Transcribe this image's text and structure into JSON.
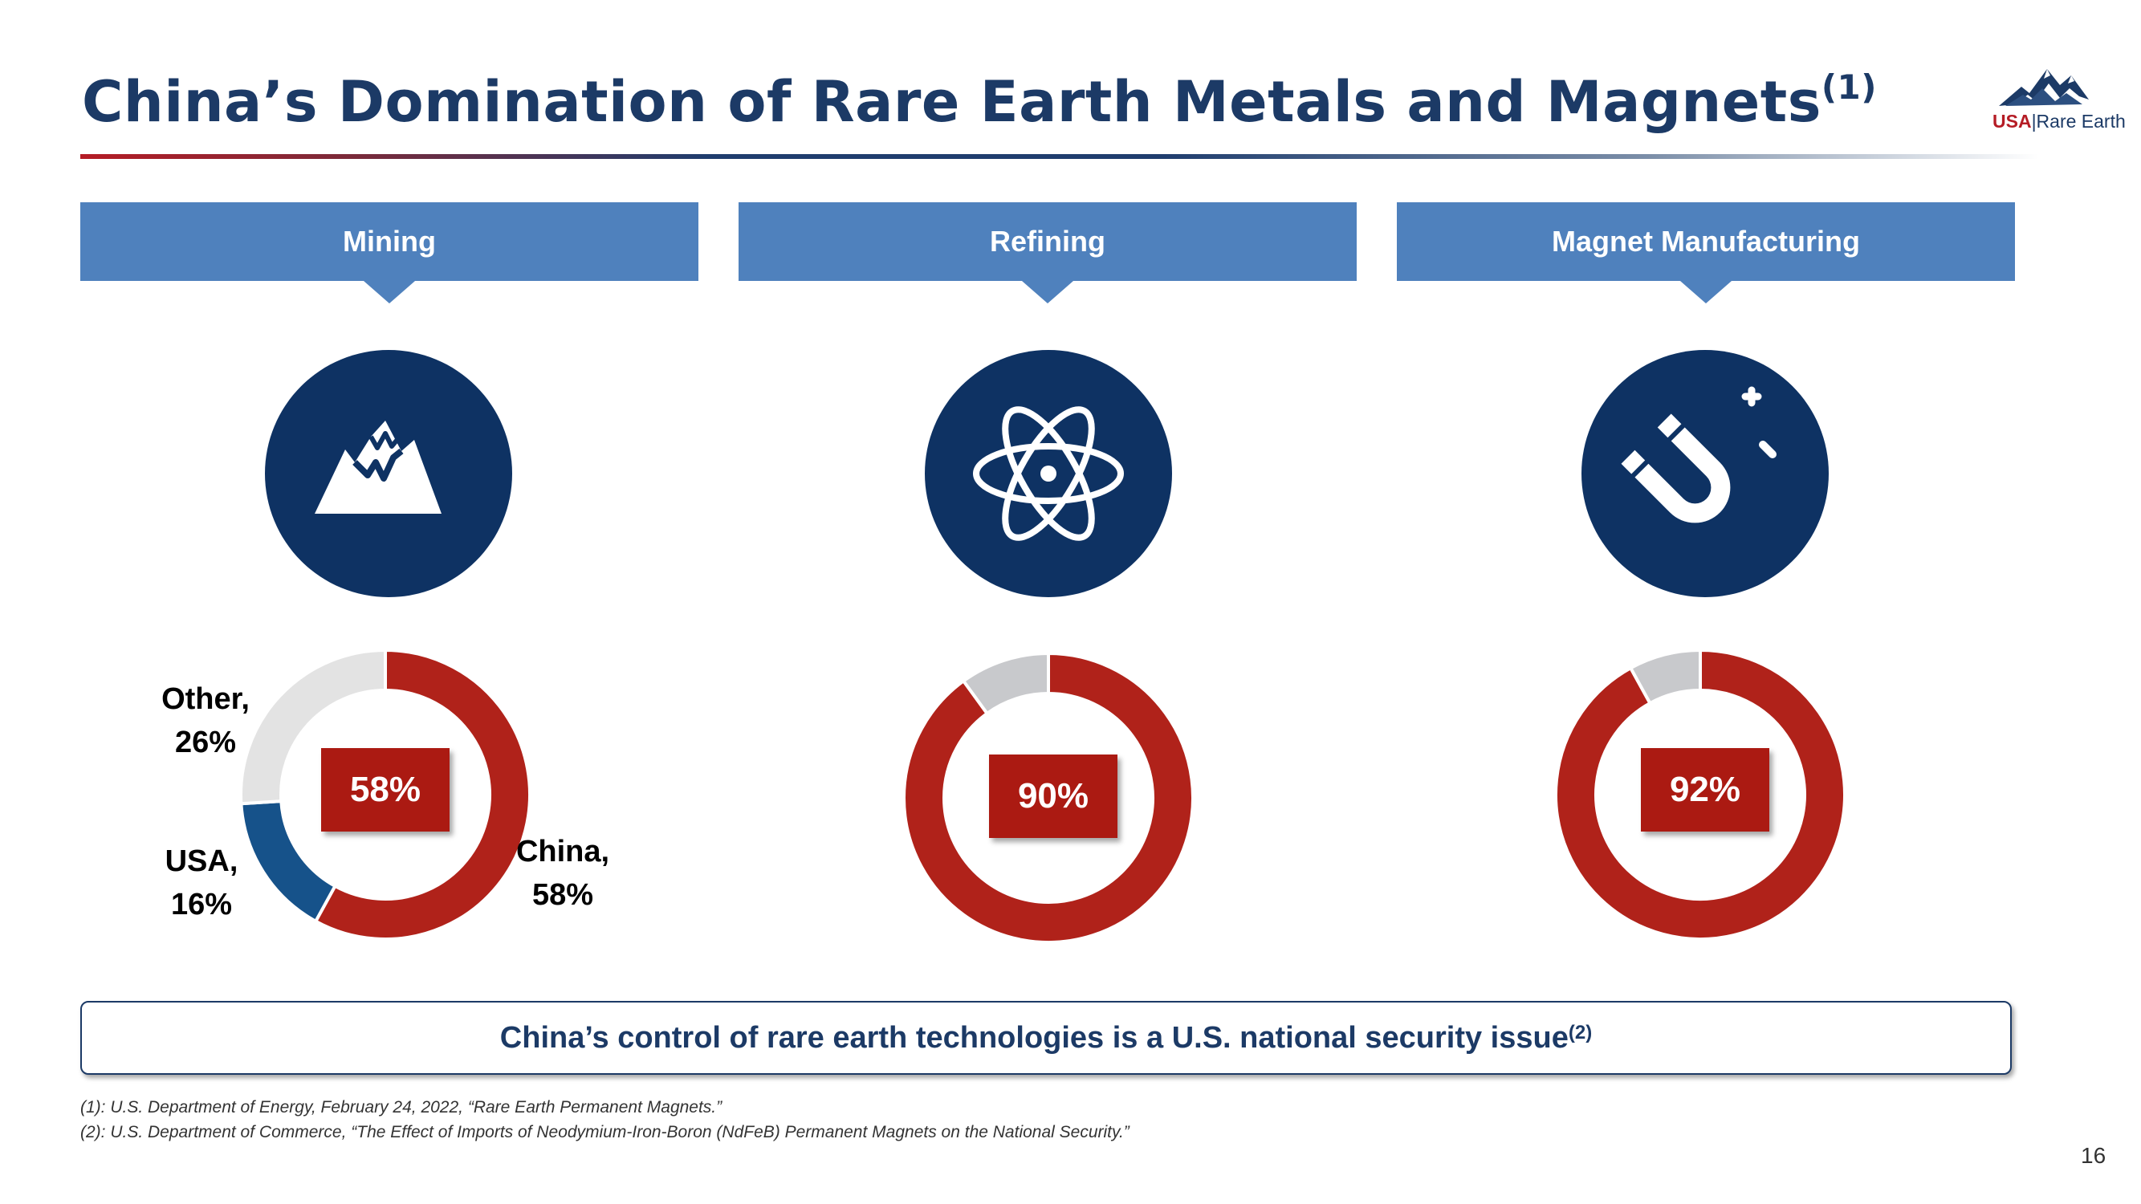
{
  "title": {
    "text": "China’s Domination of Rare Earth Metals and Magnets",
    "sup": "(1)"
  },
  "logo": {
    "usa": "USA",
    "separator": "|",
    "name": "Rare Earth"
  },
  "columns": [
    {
      "header": "Mining",
      "icon": "mountain-icon",
      "center_label": "58%"
    },
    {
      "header": "Refining",
      "icon": "atom-icon",
      "center_label": "90%"
    },
    {
      "header": "Magnet Manufacturing",
      "icon": "magnet-icon",
      "center_label": "92%"
    }
  ],
  "mining_labels": {
    "other": {
      "line1": "Other,",
      "line2": "26%"
    },
    "usa": {
      "line1": "USA,",
      "line2": "16%"
    },
    "china": {
      "line1": "China,",
      "line2": "58%"
    }
  },
  "chart_data": [
    {
      "type": "pie",
      "subtype": "donut",
      "categories": [
        "China",
        "USA",
        "Other"
      ],
      "values": [
        58,
        16,
        26
      ],
      "colors": [
        "#b0221a",
        "#16528a",
        "#e3e3e3"
      ]
    },
    {
      "type": "pie",
      "subtype": "donut",
      "categories": [
        "China",
        "Rest"
      ],
      "values": [
        90,
        10
      ],
      "colors": [
        "#b0221a",
        "#c8c9cc"
      ]
    },
    {
      "type": "pie",
      "subtype": "donut",
      "categories": [
        "China",
        "Rest"
      ],
      "values": [
        92,
        8
      ],
      "colors": [
        "#b0221a",
        "#c8c9cc"
      ]
    }
  ],
  "callout": {
    "text": "China’s control of rare earth technologies is a U.S. national security issue",
    "sup": "(2)"
  },
  "footnotes": [
    "(1): U.S. Department of Energy, February 24, 2022, “Rare Earth Permanent Magnets.”",
    "(2): U.S. Department of Commerce, “The Effect of Imports of Neodymium-Iron-Boron (NdFeB) Permanent Magnets on the National Security.”"
  ],
  "page_number": "16",
  "colors": {
    "navy": "#1c3a66",
    "header_blue": "#4f81bd",
    "icon_navy": "#0e3263",
    "china_red": "#b0221a",
    "label_red": "#ab1a12"
  }
}
